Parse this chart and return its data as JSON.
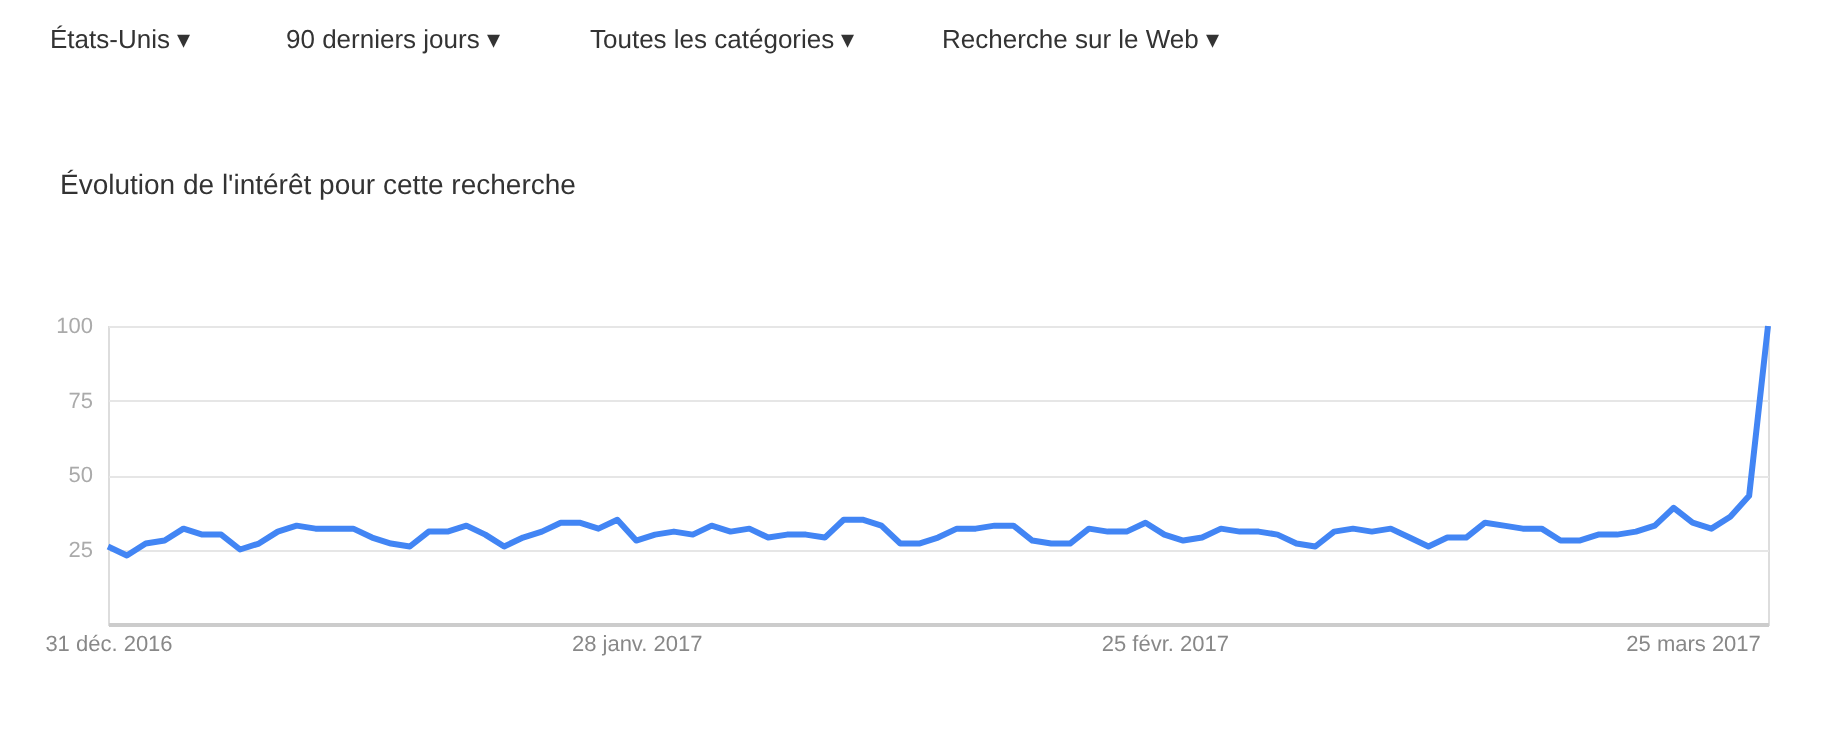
{
  "chart_data": {
    "type": "line",
    "title": "Évolution de l'intérêt pour cette recherche",
    "annotations": [
      "États-Unis ▾",
      "90 derniers jours ▾",
      "Toutes les catégories ▾",
      "Recherche sur le Web ▾"
    ],
    "x": [
      "2016-12-31",
      "2017-01-01",
      "2017-01-02",
      "2017-01-03",
      "2017-01-04",
      "2017-01-05",
      "2017-01-06",
      "2017-01-07",
      "2017-01-08",
      "2017-01-09",
      "2017-01-10",
      "2017-01-11",
      "2017-01-12",
      "2017-01-13",
      "2017-01-14",
      "2017-01-15",
      "2017-01-16",
      "2017-01-17",
      "2017-01-18",
      "2017-01-19",
      "2017-01-20",
      "2017-01-21",
      "2017-01-22",
      "2017-01-23",
      "2017-01-24",
      "2017-01-25",
      "2017-01-26",
      "2017-01-27",
      "2017-01-28",
      "2017-01-29",
      "2017-01-30",
      "2017-01-31",
      "2017-02-01",
      "2017-02-02",
      "2017-02-03",
      "2017-02-04",
      "2017-02-05",
      "2017-02-06",
      "2017-02-07",
      "2017-02-08",
      "2017-02-09",
      "2017-02-10",
      "2017-02-11",
      "2017-02-12",
      "2017-02-13",
      "2017-02-14",
      "2017-02-15",
      "2017-02-16",
      "2017-02-17",
      "2017-02-18",
      "2017-02-19",
      "2017-02-20",
      "2017-02-21",
      "2017-02-22",
      "2017-02-23",
      "2017-02-24",
      "2017-02-25",
      "2017-02-26",
      "2017-02-27",
      "2017-02-28",
      "2017-03-01",
      "2017-03-02",
      "2017-03-03",
      "2017-03-04",
      "2017-03-05",
      "2017-03-06",
      "2017-03-07",
      "2017-03-08",
      "2017-03-09",
      "2017-03-10",
      "2017-03-11",
      "2017-03-12",
      "2017-03-13",
      "2017-03-14",
      "2017-03-15",
      "2017-03-16",
      "2017-03-17",
      "2017-03-18",
      "2017-03-19",
      "2017-03-20",
      "2017-03-21",
      "2017-03-22",
      "2017-03-23",
      "2017-03-24",
      "2017-03-25",
      "2017-03-26",
      "2017-03-27",
      "2017-03-28",
      "2017-03-29"
    ],
    "series": [
      {
        "color": "#4285f4",
        "values": [
          26,
          23,
          27,
          28,
          32,
          30,
          30,
          25,
          27,
          31,
          33,
          32,
          32,
          32,
          29,
          27,
          26,
          31,
          31,
          33,
          30,
          26,
          29,
          31,
          34,
          34,
          32,
          35,
          28,
          30,
          31,
          30,
          33,
          31,
          32,
          29,
          30,
          30,
          29,
          35,
          35,
          33,
          27,
          27,
          29,
          32,
          32,
          33,
          33,
          28,
          27,
          27,
          32,
          31,
          31,
          34,
          30,
          28,
          29,
          32,
          31,
          31,
          30,
          27,
          26,
          31,
          32,
          31,
          32,
          29,
          26,
          29,
          29,
          34,
          33,
          32,
          32,
          28,
          28,
          30,
          30,
          31,
          33,
          39,
          34,
          32,
          36,
          43,
          100
        ]
      }
    ],
    "xlim": [
      "2016-12-31",
      "2017-03-29"
    ],
    "xticks": [
      {
        "value": "2016-12-31",
        "label": "31 déc. 2016"
      },
      {
        "value": "2017-01-28",
        "label": "28 janv. 2017"
      },
      {
        "value": "2017-02-25",
        "label": "25 févr. 2017"
      },
      {
        "value": "2017-03-25",
        "label": "25 mars 2017"
      }
    ],
    "ylim": [
      0,
      100
    ],
    "yticks": [
      25,
      50,
      75,
      100
    ],
    "grid": "y",
    "marker": "none",
    "line_style": "solid"
  }
}
